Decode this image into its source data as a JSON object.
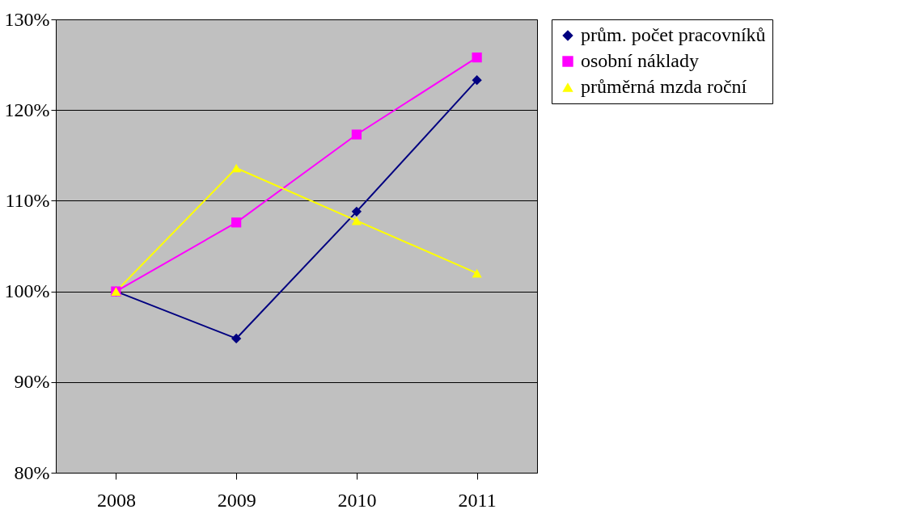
{
  "chart_data": {
    "type": "line",
    "categories": [
      "2008",
      "2009",
      "2010",
      "2011"
    ],
    "series": [
      {
        "name": "prům. počet pracovníků",
        "color": "#000080",
        "marker": "diamond",
        "values": [
          100,
          94.8,
          108.8,
          123.3
        ]
      },
      {
        "name": "osobní náklady",
        "color": "#ff00ff",
        "marker": "square",
        "values": [
          100,
          107.6,
          117.3,
          125.8
        ]
      },
      {
        "name": "průměrná mzda roční",
        "color": "#ffff00",
        "marker": "triangle",
        "values": [
          100,
          113.6,
          107.8,
          102.0
        ]
      }
    ],
    "ylim": [
      80,
      130
    ],
    "yticks": [
      {
        "value": 80,
        "label": "80%"
      },
      {
        "value": 90,
        "label": "90%"
      },
      {
        "value": 100,
        "label": "100%"
      },
      {
        "value": 110,
        "label": "110%"
      },
      {
        "value": 120,
        "label": "120%"
      },
      {
        "value": 130,
        "label": "130%"
      }
    ],
    "grid": "y",
    "legend": "right",
    "line_style": "solid"
  }
}
